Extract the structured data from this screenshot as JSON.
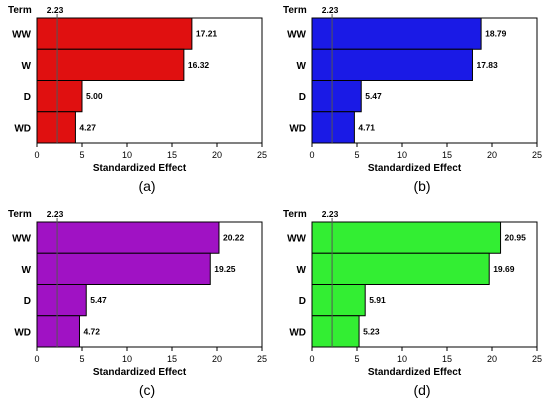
{
  "chart_data": [
    {
      "type": "bar",
      "orientation": "horizontal",
      "caption": "(a)",
      "ylabel": "Term",
      "xlabel": "Standardized Effect",
      "categories": [
        "WW",
        "W",
        "D",
        "WD"
      ],
      "values": [
        17.21,
        16.32,
        5.0,
        4.27
      ],
      "value_labels": [
        "17.21",
        "16.32",
        "5.00",
        "4.27"
      ],
      "reference_line": {
        "value": 2.23,
        "label": "2.23"
      },
      "xlim": [
        0,
        25
      ],
      "xticks": [
        "0",
        "5",
        "10",
        "15",
        "20",
        "25"
      ],
      "color": "#e01010"
    },
    {
      "type": "bar",
      "orientation": "horizontal",
      "caption": "(b)",
      "ylabel": "Term",
      "xlabel": "Standardized Effect",
      "categories": [
        "WW",
        "W",
        "D",
        "WD"
      ],
      "values": [
        18.79,
        17.83,
        5.47,
        4.71
      ],
      "value_labels": [
        "18.79",
        "17.83",
        "5.47",
        "4.71"
      ],
      "reference_line": {
        "value": 2.23,
        "label": "2.23"
      },
      "xlim": [
        0,
        25
      ],
      "xticks": [
        "0",
        "5",
        "10",
        "15",
        "20",
        "25"
      ],
      "color": "#1a1ae6"
    },
    {
      "type": "bar",
      "orientation": "horizontal",
      "caption": "(c)",
      "ylabel": "Term",
      "xlabel": "Standardized Effect",
      "categories": [
        "WW",
        "W",
        "D",
        "WD"
      ],
      "values": [
        20.22,
        19.25,
        5.47,
        4.72
      ],
      "value_labels": [
        "20.22",
        "19.25",
        "5.47",
        "4.72"
      ],
      "reference_line": {
        "value": 2.23,
        "label": "2.23"
      },
      "xlim": [
        0,
        25
      ],
      "xticks": [
        "0",
        "5",
        "10",
        "15",
        "20",
        "25"
      ],
      "color": "#a012c4"
    },
    {
      "type": "bar",
      "orientation": "horizontal",
      "caption": "(d)",
      "ylabel": "Term",
      "xlabel": "Standardized Effect",
      "categories": [
        "WW",
        "W",
        "D",
        "WD"
      ],
      "values": [
        20.95,
        19.69,
        5.91,
        5.23
      ],
      "value_labels": [
        "20.95",
        "19.69",
        "5.91",
        "5.23"
      ],
      "reference_line": {
        "value": 2.23,
        "label": "2.23"
      },
      "xlim": [
        0,
        25
      ],
      "xticks": [
        "0",
        "5",
        "10",
        "15",
        "20",
        "25"
      ],
      "color": "#33ee33"
    }
  ]
}
